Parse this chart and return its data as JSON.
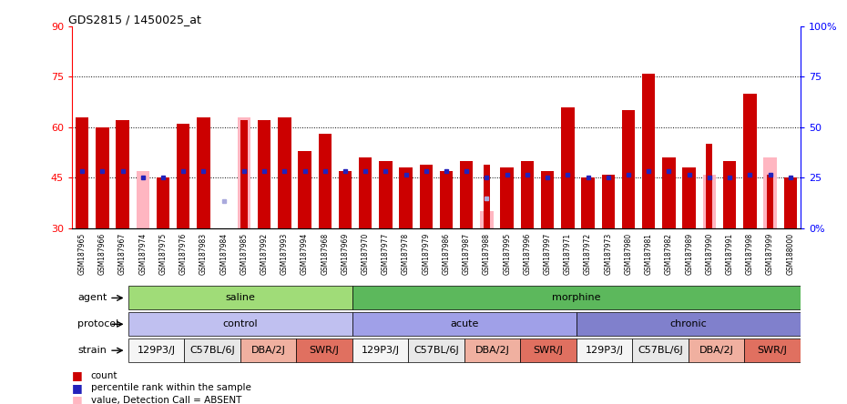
{
  "title": "GDS2815 / 1450025_at",
  "samples": [
    "GSM187965",
    "GSM187966",
    "GSM187967",
    "GSM187974",
    "GSM187975",
    "GSM187976",
    "GSM187983",
    "GSM187984",
    "GSM187985",
    "GSM187992",
    "GSM187993",
    "GSM187994",
    "GSM187968",
    "GSM187969",
    "GSM187970",
    "GSM187977",
    "GSM187978",
    "GSM187979",
    "GSM187986",
    "GSM187987",
    "GSM187988",
    "GSM187995",
    "GSM187996",
    "GSM187997",
    "GSM187971",
    "GSM187972",
    "GSM187973",
    "GSM187980",
    "GSM187981",
    "GSM187982",
    "GSM187989",
    "GSM187990",
    "GSM187991",
    "GSM187998",
    "GSM187999",
    "GSM188000"
  ],
  "red_values": [
    63,
    60,
    62,
    null,
    45,
    61,
    63,
    30,
    62,
    62,
    63,
    53,
    58,
    47,
    51,
    50,
    48,
    49,
    47,
    50,
    49,
    48,
    50,
    47,
    66,
    45,
    46,
    65,
    76,
    51,
    48,
    55,
    50,
    70,
    46,
    45
  ],
  "pink_values": [
    null,
    null,
    null,
    47,
    null,
    null,
    null,
    null,
    63,
    null,
    null,
    null,
    null,
    null,
    null,
    null,
    null,
    null,
    null,
    null,
    35,
    null,
    null,
    null,
    null,
    null,
    null,
    null,
    null,
    null,
    null,
    46,
    null,
    null,
    51,
    null
  ],
  "blue_values": [
    47,
    47,
    47,
    45,
    45,
    47,
    47,
    null,
    47,
    47,
    47,
    47,
    47,
    47,
    47,
    47,
    46,
    47,
    47,
    47,
    45,
    46,
    46,
    45,
    46,
    45,
    45,
    46,
    47,
    47,
    46,
    45,
    45,
    46,
    46,
    45
  ],
  "light_blue_values": [
    null,
    null,
    null,
    null,
    null,
    null,
    null,
    38,
    null,
    null,
    null,
    null,
    null,
    null,
    null,
    null,
    null,
    null,
    null,
    null,
    39,
    null,
    null,
    null,
    null,
    null,
    null,
    null,
    null,
    null,
    null,
    null,
    null,
    null,
    null,
    null
  ],
  "absent_red": [
    false,
    false,
    false,
    true,
    false,
    false,
    false,
    false,
    true,
    false,
    false,
    false,
    false,
    false,
    false,
    false,
    false,
    false,
    false,
    false,
    true,
    false,
    false,
    false,
    false,
    false,
    false,
    false,
    false,
    false,
    false,
    true,
    false,
    false,
    true,
    false
  ],
  "agent_groups": [
    {
      "label": "saline",
      "start": 0,
      "end": 12,
      "color": "#a0dc78"
    },
    {
      "label": "morphine",
      "start": 12,
      "end": 36,
      "color": "#5cb85c"
    }
  ],
  "protocol_groups": [
    {
      "label": "control",
      "start": 0,
      "end": 12,
      "color": "#c0c0f0"
    },
    {
      "label": "acute",
      "start": 12,
      "end": 24,
      "color": "#a0a0e8"
    },
    {
      "label": "chronic",
      "start": 24,
      "end": 36,
      "color": "#8080cc"
    }
  ],
  "strain_groups": [
    {
      "label": "129P3/J",
      "start": 0,
      "end": 3,
      "color": "#f5f5f5"
    },
    {
      "label": "C57BL/6J",
      "start": 3,
      "end": 6,
      "color": "#e8e8e8"
    },
    {
      "label": "DBA/2J",
      "start": 6,
      "end": 9,
      "color": "#f0b0a0"
    },
    {
      "label": "SWR/J",
      "start": 9,
      "end": 12,
      "color": "#e07060"
    },
    {
      "label": "129P3/J",
      "start": 12,
      "end": 15,
      "color": "#f5f5f5"
    },
    {
      "label": "C57BL/6J",
      "start": 15,
      "end": 18,
      "color": "#e8e8e8"
    },
    {
      "label": "DBA/2J",
      "start": 18,
      "end": 21,
      "color": "#f0b0a0"
    },
    {
      "label": "SWR/J",
      "start": 21,
      "end": 24,
      "color": "#e07060"
    },
    {
      "label": "129P3/J",
      "start": 24,
      "end": 27,
      "color": "#f5f5f5"
    },
    {
      "label": "C57BL/6J",
      "start": 27,
      "end": 30,
      "color": "#e8e8e8"
    },
    {
      "label": "DBA/2J",
      "start": 30,
      "end": 33,
      "color": "#f0b0a0"
    },
    {
      "label": "SWR/J",
      "start": 33,
      "end": 36,
      "color": "#e07060"
    }
  ],
  "ylim": [
    30,
    90
  ],
  "yticks": [
    30,
    45,
    60,
    75,
    90
  ],
  "ytick_dotted": [
    45,
    60,
    75
  ],
  "right_yticks": [
    0,
    25,
    50,
    75,
    100
  ],
  "right_ytick_labels": [
    "0%",
    "25",
    "50",
    "75",
    "100%"
  ],
  "bar_color": "#cc0000",
  "pink_color": "#ffb6c1",
  "blue_color": "#2222bb",
  "light_blue_color": "#aaaadd",
  "xticklabel_bg": "#d0d0d0"
}
